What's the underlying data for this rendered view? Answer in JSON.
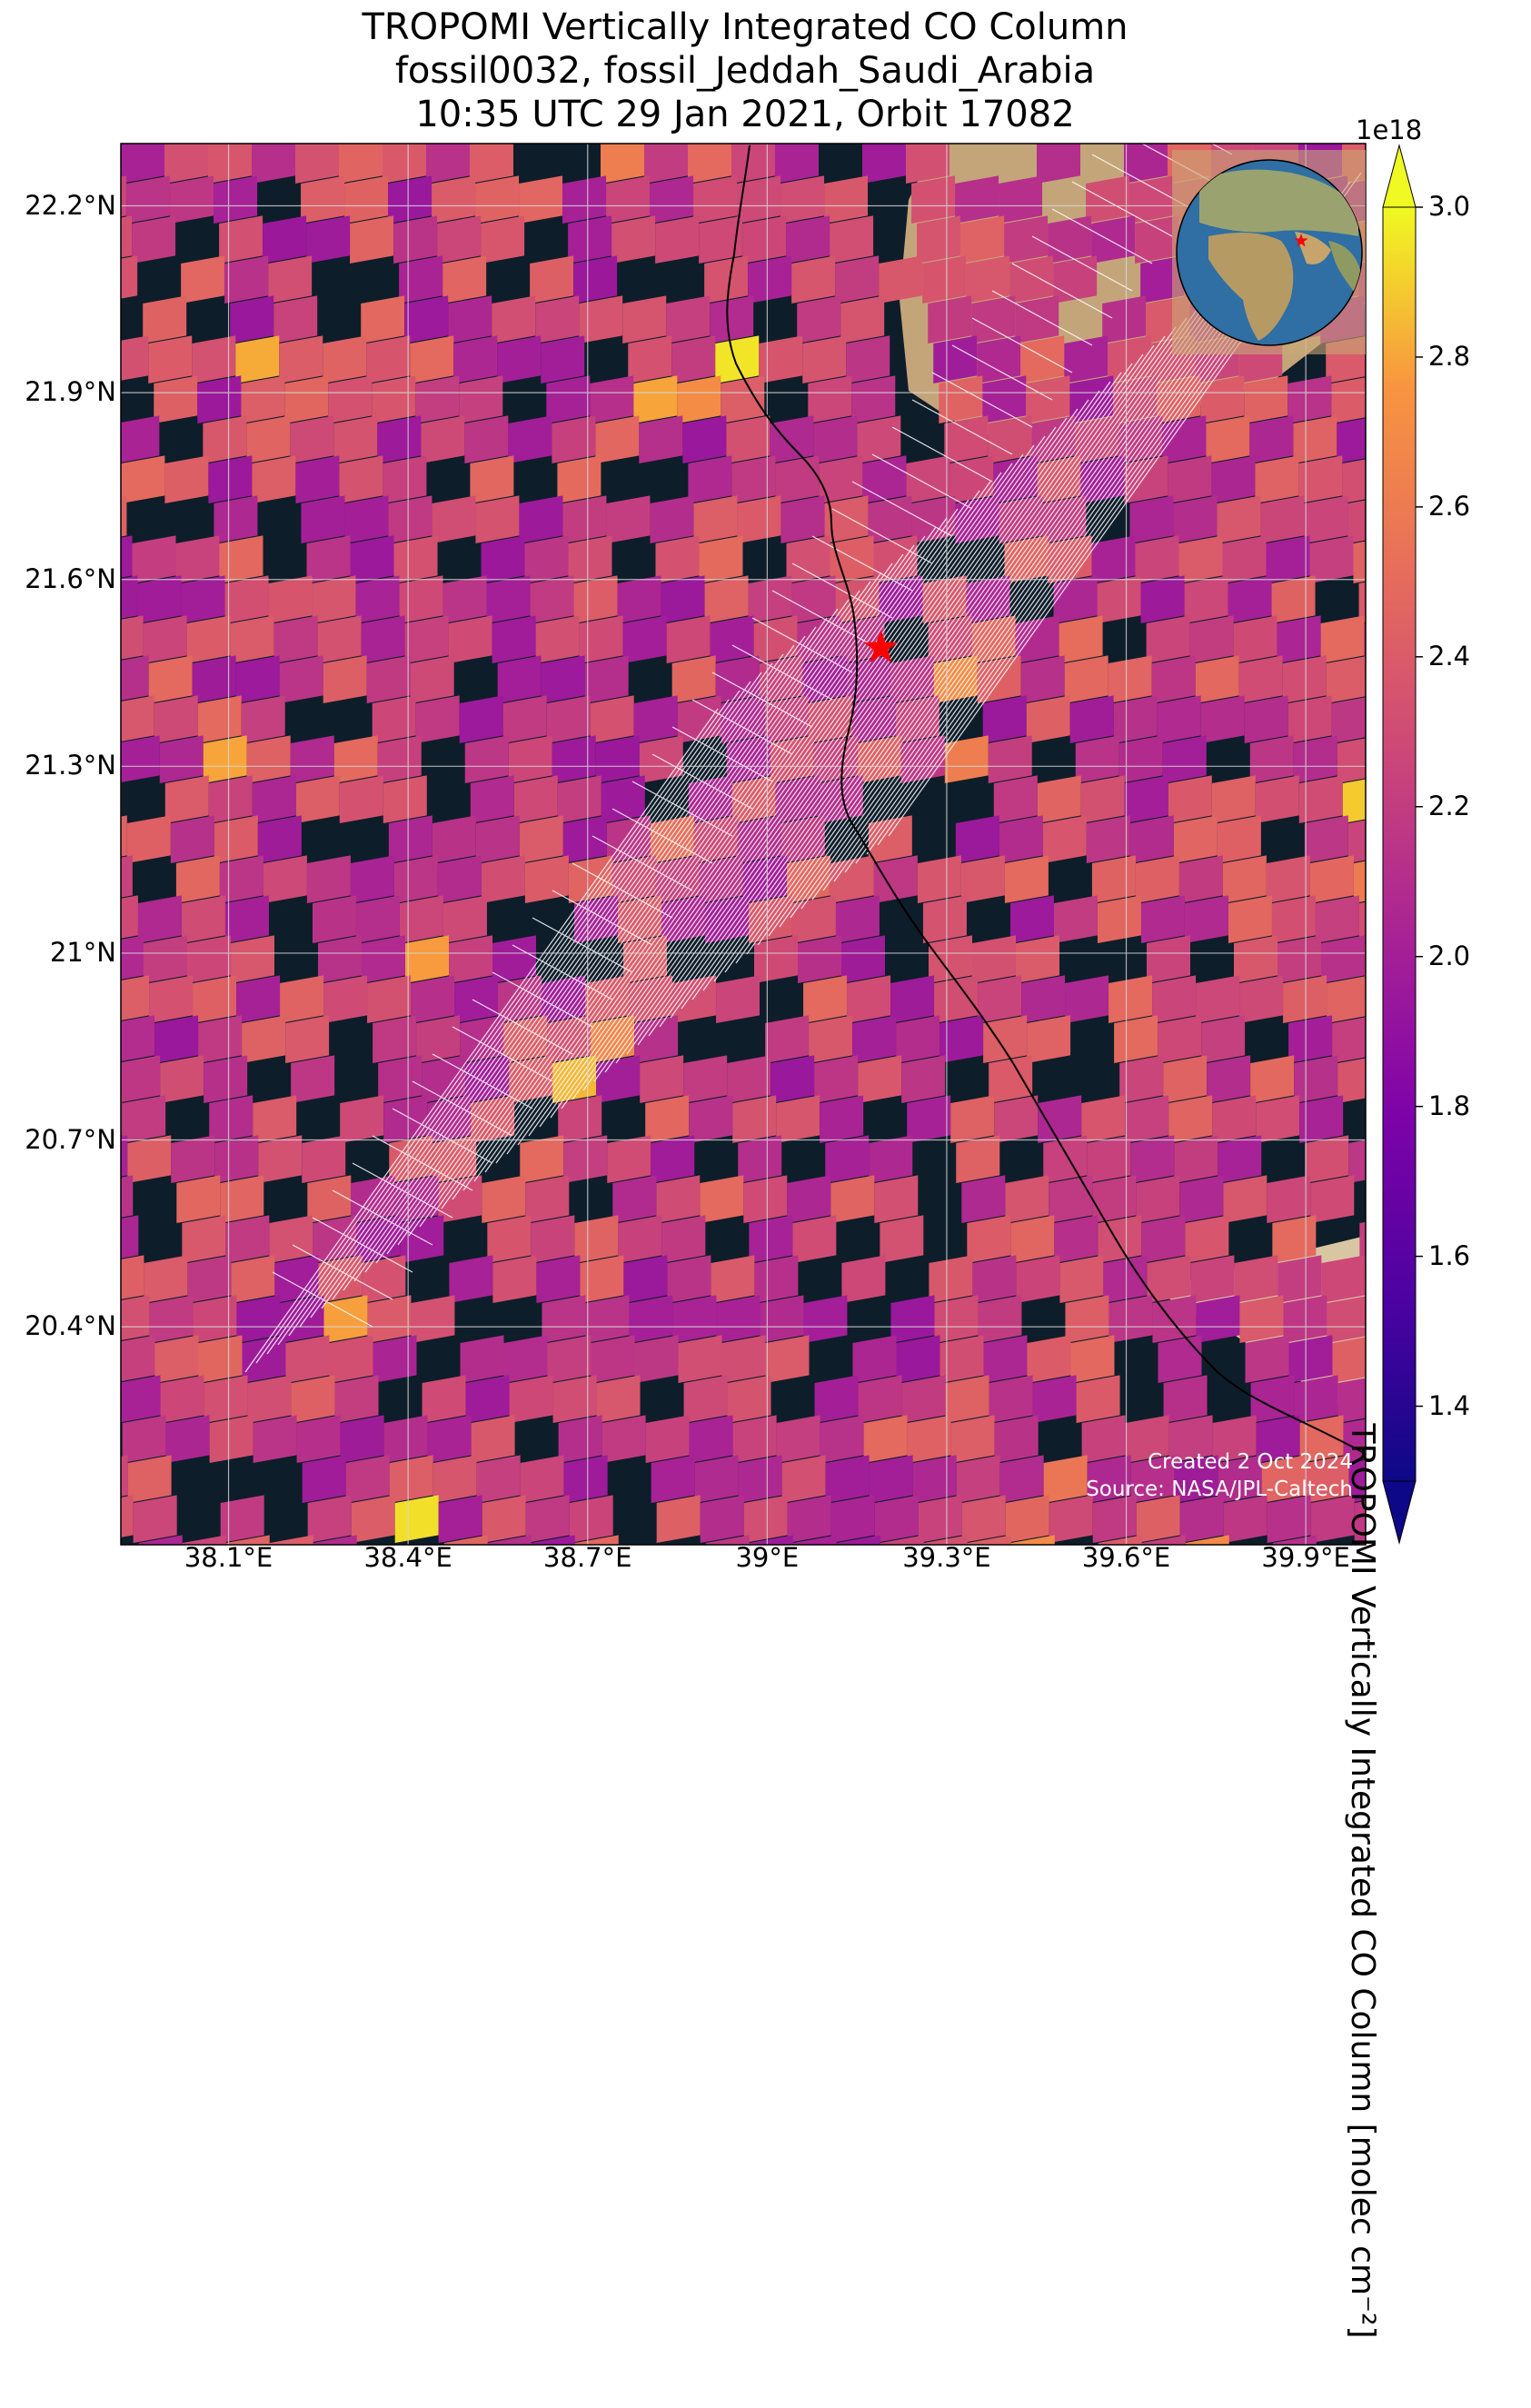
{
  "title": {
    "line1": "TROPOMI Vertically Integrated CO Column",
    "line2": "fossil0032, fossil_Jeddah_Saudi_Arabia",
    "line3": "10:35 UTC 29 Jan 2021, Orbit 17082"
  },
  "map": {
    "lon_range": [
      37.92,
      40.0
    ],
    "lat_range": [
      20.05,
      22.3
    ],
    "lat_ticks": [
      "22.2°N",
      "21.9°N",
      "21.6°N",
      "21.3°N",
      "21°N",
      "20.7°N",
      "20.4°N"
    ],
    "lon_ticks": [
      "38.1°E",
      "38.4°E",
      "38.7°E",
      "39°E",
      "39.3°E",
      "39.6°E",
      "39.9°E"
    ],
    "site_marker": {
      "name": "Jeddah",
      "lon": 39.19,
      "lat": 21.49,
      "color": "#ff0000",
      "icon": "star-icon"
    },
    "water_color": "#0e1d2a",
    "desert_color": "#d5bb92"
  },
  "colorbar": {
    "colormap": "plasma",
    "vmin": 1.3,
    "vmax": 3.0,
    "exponent": "1e18",
    "ticks": [
      "1.4",
      "1.6",
      "1.8",
      "2.0",
      "2.2",
      "2.4",
      "2.6",
      "2.8",
      "3.0"
    ],
    "label": "TROPOMI Vertically Integrated CO Column [molec cm⁻²]",
    "extend": "both"
  },
  "inset": {
    "type": "globe",
    "marker": "star-icon",
    "marker_color": "#ff0000"
  },
  "credits": {
    "created": "Created 2 Oct 2024",
    "source": "Source: NASA/JPL-Caltech"
  }
}
